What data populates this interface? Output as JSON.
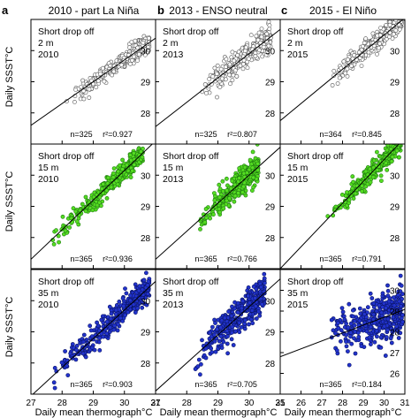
{
  "columns": [
    {
      "letter": "a",
      "title": "2010 - part La Niña"
    },
    {
      "letter": "b",
      "title": "2013 - ENSO neutral"
    },
    {
      "letter": "c",
      "title": "2015 - El Niño"
    }
  ],
  "rows": [
    {
      "depth": "2 m",
      "fill": "#ffffff",
      "stroke": "#555555"
    },
    {
      "depth": "15 m",
      "fill": "#55dd22",
      "stroke": "#1e7a10"
    },
    {
      "depth": "35 m",
      "fill": "#2233cc",
      "stroke": "#0a1466"
    }
  ],
  "axis_labels": {
    "y": "Daily SSST°C",
    "x": "Daily mean thermograph°C"
  },
  "chart_data": [
    {
      "type": "scatter",
      "panel": "a-row1",
      "label": "Short drop off",
      "depth": "2 m",
      "year": "2010",
      "n_text": "n=325",
      "r2_text": "r²=0.927",
      "xlim": [
        27,
        31
      ],
      "ylim": [
        27,
        31
      ],
      "xticks": [
        27,
        28,
        29,
        30,
        31
      ],
      "yticks": [
        27,
        28,
        29,
        30,
        31
      ],
      "fit": {
        "slope": 0.7,
        "intercept": 8.7
      },
      "cloud": {
        "x0": 28.1,
        "x1": 30.8,
        "n": 325,
        "sd": 0.15,
        "seed": 11
      }
    },
    {
      "type": "scatter",
      "panel": "b-row1",
      "label": "Short drop off",
      "depth": "2 m",
      "year": "2013",
      "n_text": "n=325",
      "r2_text": "r²=0.807",
      "xlim": [
        27,
        31
      ],
      "ylim": [
        27,
        31
      ],
      "xticks": [
        27,
        28,
        29,
        30,
        31
      ],
      "yticks": [
        27,
        28,
        29,
        30,
        31
      ],
      "fit": {
        "slope": 0.78,
        "intercept": 6.5
      },
      "cloud": {
        "x0": 28.4,
        "x1": 30.7,
        "n": 325,
        "sd": 0.2,
        "seed": 12
      }
    },
    {
      "type": "scatter",
      "panel": "c-row1",
      "label": "Short drop off",
      "depth": "2 m",
      "year": "2015",
      "n_text": "n=364",
      "r2_text": "r²=0.845",
      "xlim": [
        25,
        31
      ],
      "ylim": [
        27,
        31
      ],
      "xticks": [
        25,
        26,
        27,
        28,
        29,
        30,
        31
      ],
      "yticks": [
        27,
        28,
        29,
        30,
        31
      ],
      "fit": {
        "slope": 0.55,
        "intercept": 14.0
      },
      "cloud": {
        "x0": 27.3,
        "x1": 30.9,
        "n": 364,
        "sd": 0.15,
        "seed": 13
      }
    },
    {
      "type": "scatter",
      "panel": "a-row2",
      "label": "Short drop off",
      "depth": "15 m",
      "year": "2010",
      "n_text": "n=365",
      "r2_text": "r²=0.936",
      "xlim": [
        27,
        31
      ],
      "ylim": [
        27,
        31
      ],
      "xticks": [
        27,
        28,
        29,
        30,
        31
      ],
      "yticks": [
        27,
        28,
        29,
        30,
        31
      ],
      "fit": {
        "slope": 0.95,
        "intercept": 1.65
      },
      "cloud": {
        "x0": 27.6,
        "x1": 30.6,
        "n": 365,
        "sd": 0.16,
        "seed": 21
      }
    },
    {
      "type": "scatter",
      "panel": "b-row2",
      "label": "Short drop off",
      "depth": "15 m",
      "year": "2013",
      "n_text": "n=365",
      "r2_text": "r²=0.766",
      "xlim": [
        27,
        31
      ],
      "ylim": [
        27,
        31
      ],
      "xticks": [
        27,
        28,
        29,
        30,
        31
      ],
      "yticks": [
        27,
        28,
        29,
        30,
        31
      ],
      "fit": {
        "slope": 0.9,
        "intercept": 3.0
      },
      "cloud": {
        "x0": 28.3,
        "x1": 30.3,
        "n": 365,
        "sd": 0.22,
        "seed": 22
      }
    },
    {
      "type": "scatter",
      "panel": "c-row2",
      "label": "Short drop off",
      "depth": "15 m",
      "year": "2015",
      "n_text": "n=365",
      "r2_text": "r²=0.791",
      "xlim": [
        25,
        31
      ],
      "ylim": [
        27,
        31
      ],
      "xticks": [
        25,
        26,
        27,
        28,
        29,
        30,
        31
      ],
      "yticks": [
        27,
        28,
        29,
        30,
        31
      ],
      "fit": {
        "slope": 0.7,
        "intercept": 9.5
      },
      "cloud": {
        "x0": 27.2,
        "x1": 30.8,
        "n": 365,
        "sd": 0.17,
        "seed": 23
      }
    },
    {
      "type": "scatter",
      "panel": "a-row3",
      "label": "Short drop off",
      "depth": "35 m",
      "year": "2010",
      "n_text": "n=365",
      "r2_text": "r²=0.903",
      "xlim": [
        27,
        31
      ],
      "ylim": [
        27,
        31
      ],
      "xticks": [
        27,
        28,
        29,
        30,
        31
      ],
      "yticks": [
        27,
        28,
        29,
        30,
        31
      ],
      "fit": {
        "slope": 0.92,
        "intercept": 2.1
      },
      "cloud": {
        "x0": 27.6,
        "x1": 30.8,
        "n": 365,
        "sd": 0.2,
        "seed": 31
      }
    },
    {
      "type": "scatter",
      "panel": "b-row3",
      "label": "Short drop off",
      "depth": "35 m",
      "year": "2013",
      "n_text": "n=365",
      "r2_text": "r²=0.705",
      "xlim": [
        27,
        31
      ],
      "ylim": [
        27,
        31
      ],
      "xticks": [
        27,
        28,
        29,
        30,
        31
      ],
      "yticks": [
        27,
        28,
        29,
        30,
        31
      ],
      "fit": {
        "slope": 0.9,
        "intercept": 2.8
      },
      "cloud": {
        "x0": 28.2,
        "x1": 30.5,
        "n": 365,
        "sd": 0.28,
        "seed": 32
      }
    },
    {
      "type": "scatter",
      "panel": "c-row3",
      "label": "Short drop off",
      "depth": "35 m",
      "year": "2015",
      "n_text": "n=365",
      "r2_text": "r²=0.184",
      "xlim": [
        25,
        31
      ],
      "ylim": [
        25,
        31
      ],
      "xticks": [
        25,
        26,
        27,
        28,
        29,
        30,
        31
      ],
      "yticks": [
        25,
        26,
        27,
        28,
        29,
        30,
        31
      ],
      "fit": {
        "slope": 0.38,
        "intercept": 17.3
      },
      "cloud": {
        "x0": 27.2,
        "x1": 30.9,
        "n": 365,
        "sd": 0.55,
        "seed": 33
      }
    }
  ]
}
